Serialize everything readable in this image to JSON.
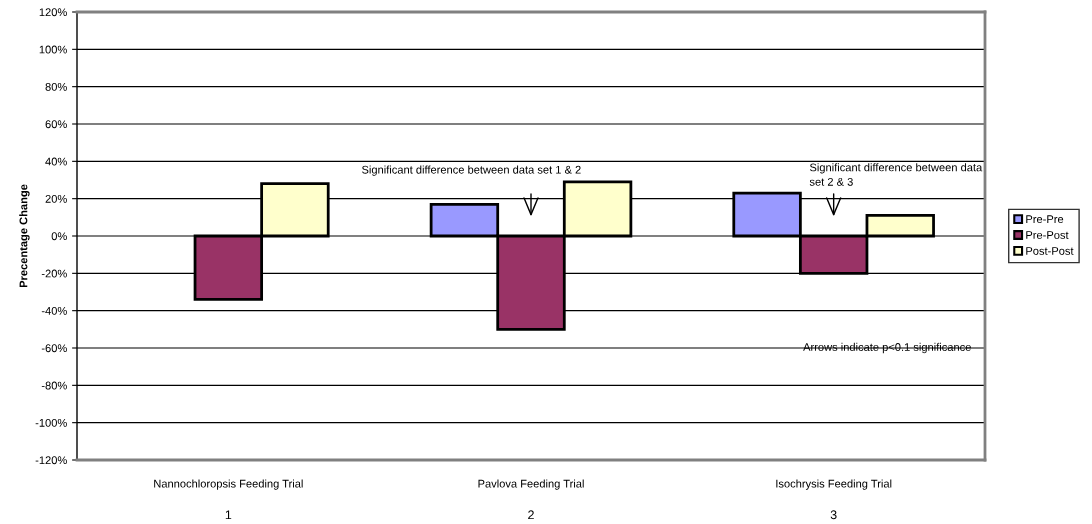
{
  "chart_data": {
    "type": "bar",
    "ylabel": "Precentage Change",
    "categories": [
      "Nannochloropsis Feeding Trial",
      "Pavlova Feeding Trial",
      "Isochrysis Feeding Trial"
    ],
    "series": [
      {
        "name": "Pre-Pre",
        "color": "#9999ff",
        "values": [
          null,
          17,
          23
        ]
      },
      {
        "name": "Pre-Post",
        "color": "#993366",
        "values": [
          -34,
          -50,
          -20
        ]
      },
      {
        "name": "Post-Post",
        "color": "#ffffcc",
        "values": [
          28,
          29,
          11
        ]
      }
    ],
    "ylim": [
      -120,
      120
    ],
    "yticks": [
      {
        "value": -120,
        "label": "-120%"
      },
      {
        "value": -100,
        "label": "-100%"
      },
      {
        "value": -80,
        "label": "-80%"
      },
      {
        "value": -60,
        "label": "-60%"
      },
      {
        "value": -40,
        "label": "-40%"
      },
      {
        "value": -20,
        "label": "-20%"
      },
      {
        "value": 0,
        "label": "0%"
      },
      {
        "value": 20,
        "label": "20%"
      },
      {
        "value": 40,
        "label": "40%"
      },
      {
        "value": 60,
        "label": "60%"
      },
      {
        "value": 80,
        "label": "80%"
      },
      {
        "value": 100,
        "label": "100%"
      },
      {
        "value": 120,
        "label": "120%"
      }
    ],
    "grid": "y",
    "legend": "right",
    "annotations": [
      "Significant difference between data set 1 & 2",
      "Significant difference between data\nset 2 & 3",
      "Arrows indicate p<0.1 significance",
      "1",
      "2",
      "3"
    ]
  }
}
